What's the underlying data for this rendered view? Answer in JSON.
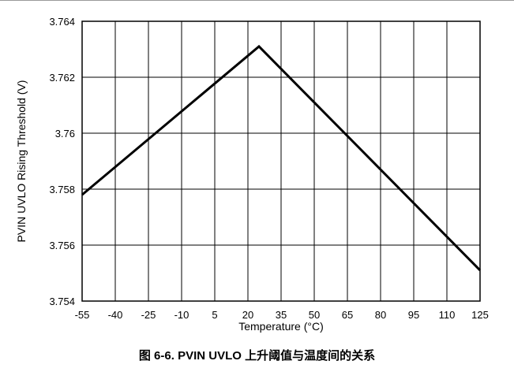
{
  "chart_data": {
    "type": "line",
    "xlabel": "Temperature (°C)",
    "ylabel": "PVIN UVLO Rising Threshold (V)",
    "x_ticks": [
      "-55",
      "-40",
      "-25",
      "-10",
      "5",
      "20",
      "35",
      "50",
      "65",
      "80",
      "95",
      "110",
      "125"
    ],
    "y_ticks": [
      "3.754",
      "3.756",
      "3.758",
      "3.76",
      "3.762",
      "3.764"
    ],
    "xlim": [
      -55,
      125
    ],
    "ylim": [
      3.754,
      3.764
    ],
    "grid": true,
    "series": [
      {
        "x": [
          -55,
          25,
          125
        ],
        "y": [
          3.7578,
          3.7631,
          3.7551
        ]
      }
    ],
    "caption": "图 6-6. PVIN UVLO 上升阈值与温度间的关系"
  }
}
